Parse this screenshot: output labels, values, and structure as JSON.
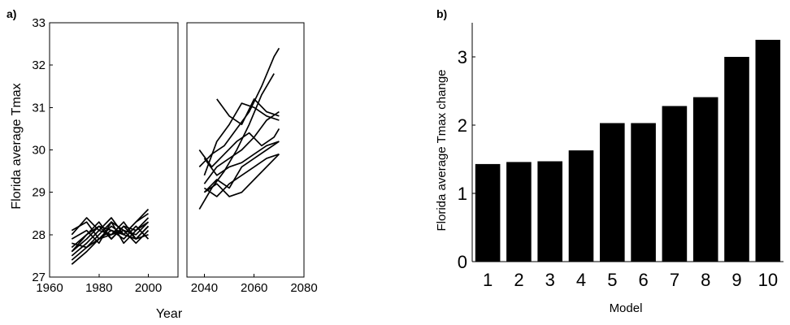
{
  "chart_data": [
    {
      "type": "line",
      "panel_label": "a)",
      "title": "",
      "xlabel": "Year",
      "ylabel": "Florida average Tmax",
      "xlim": [
        1960,
        2080
      ],
      "ylim": [
        27,
        33
      ],
      "grid": false,
      "broken_x_axis": {
        "gap_from": 2012,
        "gap_to": 2033
      },
      "x_ticks": [
        1960,
        1980,
        2000,
        2040,
        2060,
        2080
      ],
      "y_ticks": [
        27,
        28,
        29,
        30,
        31,
        32,
        33
      ],
      "x_tick_labels": [
        "1960",
        "1980",
        "2000",
        "2040",
        "2060",
        "2080"
      ],
      "y_tick_labels": [
        "27",
        "28",
        "29",
        "30",
        "31",
        "32",
        "33"
      ],
      "series": [
        {
          "segments": [
            {
              "x": [
                1969,
                1975,
                1980,
                1985,
                1990,
                1995,
                2000
              ],
              "y": [
                27.6,
                27.9,
                28.2,
                27.9,
                28.2,
                27.9,
                28.2
              ]
            },
            {
              "x": [
                2038,
                2043,
                2048,
                2053,
                2058,
                2063,
                2068,
                2070
              ],
              "y": [
                29.6,
                29.9,
                30.1,
                30.5,
                30.9,
                31.5,
                32.2,
                32.4
              ]
            }
          ]
        },
        {
          "segments": [
            {
              "x": [
                1969,
                1975,
                1980,
                1985,
                1990,
                1995,
                2000
              ],
              "y": [
                27.8,
                27.7,
                28.0,
                28.3,
                27.8,
                28.1,
                28.4
              ]
            },
            {
              "x": [
                2045,
                2050,
                2055,
                2060,
                2065,
                2070
              ],
              "y": [
                31.2,
                30.8,
                30.6,
                31.2,
                30.9,
                30.8
              ]
            }
          ]
        },
        {
          "segments": [
            {
              "x": [
                1969,
                1975,
                1980,
                1985,
                1990,
                1995,
                2000
              ],
              "y": [
                27.5,
                27.8,
                28.1,
                28.0,
                28.3,
                27.9,
                28.0
              ]
            },
            {
              "x": [
                2040,
                2045,
                2050,
                2055,
                2060,
                2065,
                2070
              ],
              "y": [
                29.4,
                30.2,
                30.6,
                31.1,
                31.0,
                30.8,
                30.7
              ]
            }
          ]
        },
        {
          "segments": [
            {
              "x": [
                1969,
                1975,
                1980,
                1985,
                1990,
                1995,
                2000
              ],
              "y": [
                28.1,
                28.3,
                27.9,
                28.1,
                28.0,
                28.3,
                28.5
              ]
            },
            {
              "x": [
                2038,
                2043,
                2048,
                2053,
                2058,
                2063,
                2068
              ],
              "y": [
                28.6,
                29.1,
                29.5,
                30.0,
                30.6,
                31.3,
                31.8
              ]
            }
          ]
        },
        {
          "segments": [
            {
              "x": [
                1969,
                1975,
                1980,
                1985,
                1990,
                1995,
                2000
              ],
              "y": [
                27.7,
                28.0,
                28.2,
                28.1,
                27.9,
                28.2,
                27.9
              ]
            },
            {
              "x": [
                2038,
                2043,
                2048,
                2053,
                2058,
                2063,
                2068,
                2070
              ],
              "y": [
                30.0,
                29.6,
                29.9,
                30.2,
                30.4,
                30.1,
                30.3,
                30.5
              ]
            }
          ]
        },
        {
          "segments": [
            {
              "x": [
                1969,
                1975,
                1980,
                1985,
                1990,
                1995,
                2000
              ],
              "y": [
                27.4,
                27.7,
                27.9,
                28.2,
                28.0,
                27.9,
                28.2
              ]
            },
            {
              "x": [
                2040,
                2045,
                2050,
                2055,
                2060,
                2065,
                2070
              ],
              "y": [
                29.2,
                29.6,
                29.8,
                30.0,
                30.3,
                30.7,
                30.9
              ]
            }
          ]
        },
        {
          "segments": [
            {
              "x": [
                1969,
                1975,
                1980,
                1985,
                1990,
                1995,
                2000
              ],
              "y": [
                27.9,
                28.1,
                27.8,
                28.3,
                28.1,
                27.8,
                28.1
              ]
            },
            {
              "x": [
                2040,
                2045,
                2050,
                2055,
                2060,
                2065,
                2070
              ],
              "y": [
                29.8,
                29.4,
                29.6,
                29.7,
                29.9,
                30.1,
                30.2
              ]
            }
          ]
        },
        {
          "segments": [
            {
              "x": [
                1969,
                1975,
                1980,
                1985,
                1990,
                1995,
                2000
              ],
              "y": [
                27.6,
                28.0,
                28.3,
                27.9,
                28.2,
                28.1,
                28.3
              ]
            },
            {
              "x": [
                2040,
                2045,
                2050,
                2055,
                2060,
                2065,
                2070
              ],
              "y": [
                29.0,
                29.3,
                29.1,
                29.6,
                29.8,
                30.0,
                30.2
              ]
            }
          ]
        },
        {
          "segments": [
            {
              "x": [
                1969,
                1975,
                1980,
                1985,
                1990,
                1995,
                2000
              ],
              "y": [
                27.3,
                27.6,
                27.9,
                28.0,
                28.1,
                28.0,
                28.3
              ]
            },
            {
              "x": [
                2040,
                2045,
                2050,
                2055,
                2060,
                2065,
                2070
              ],
              "y": [
                29.1,
                28.9,
                29.2,
                29.4,
                29.6,
                29.8,
                29.9
              ]
            }
          ]
        },
        {
          "segments": [
            {
              "x": [
                1969,
                1975,
                1980,
                1985,
                1990,
                1995,
                2000
              ],
              "y": [
                28.0,
                28.4,
                28.1,
                28.4,
                28.0,
                28.3,
                28.6
              ]
            },
            {
              "x": [
                2040,
                2045,
                2050,
                2055,
                2060,
                2065,
                2070
              ],
              "y": [
                29.0,
                29.2,
                28.9,
                29.0,
                29.3,
                29.6,
                29.9
              ]
            }
          ]
        }
      ]
    },
    {
      "type": "bar",
      "panel_label": "b)",
      "title": "",
      "xlabel": "Model",
      "ylabel": "Florida average Tmax change",
      "categories": [
        "1",
        "2",
        "3",
        "4",
        "5",
        "6",
        "7",
        "8",
        "9",
        "10"
      ],
      "values": [
        1.43,
        1.46,
        1.47,
        1.63,
        2.03,
        2.03,
        2.28,
        2.41,
        3.0,
        3.25
      ],
      "ylim": [
        0,
        3.5
      ],
      "y_ticks": [
        0,
        1,
        2,
        3
      ],
      "y_tick_labels": [
        "0",
        "1",
        "2",
        "3"
      ],
      "grid": false
    }
  ]
}
